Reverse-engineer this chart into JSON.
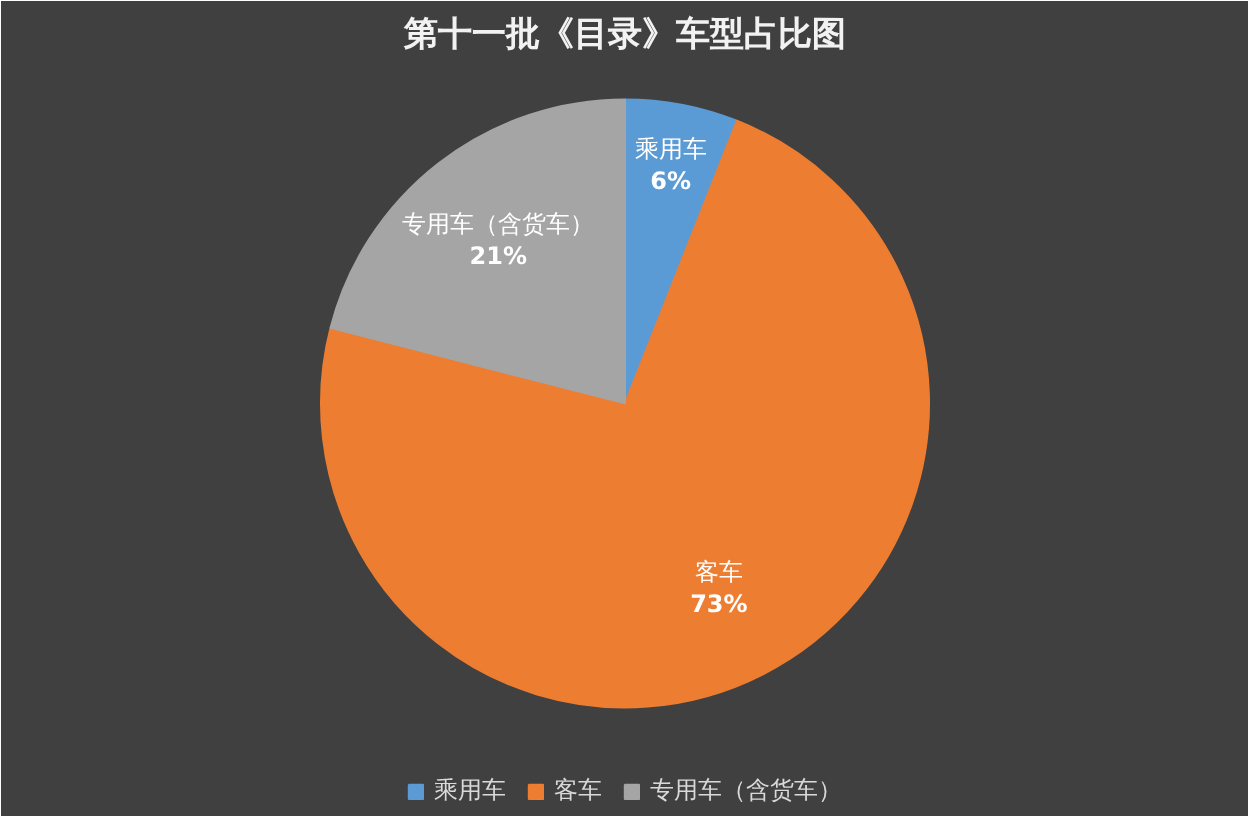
{
  "chart_data": {
    "type": "pie",
    "title": "第十一批《目录》车型占比图",
    "categories": [
      "乘用车",
      "客车",
      "专用车（含货车）"
    ],
    "values": [
      6,
      73,
      21
    ],
    "colors": [
      "#5b9bd5",
      "#ed7d31",
      "#a5a5a5"
    ],
    "value_labels": [
      "6%",
      "73%",
      "21%"
    ],
    "legend": "bottom"
  }
}
